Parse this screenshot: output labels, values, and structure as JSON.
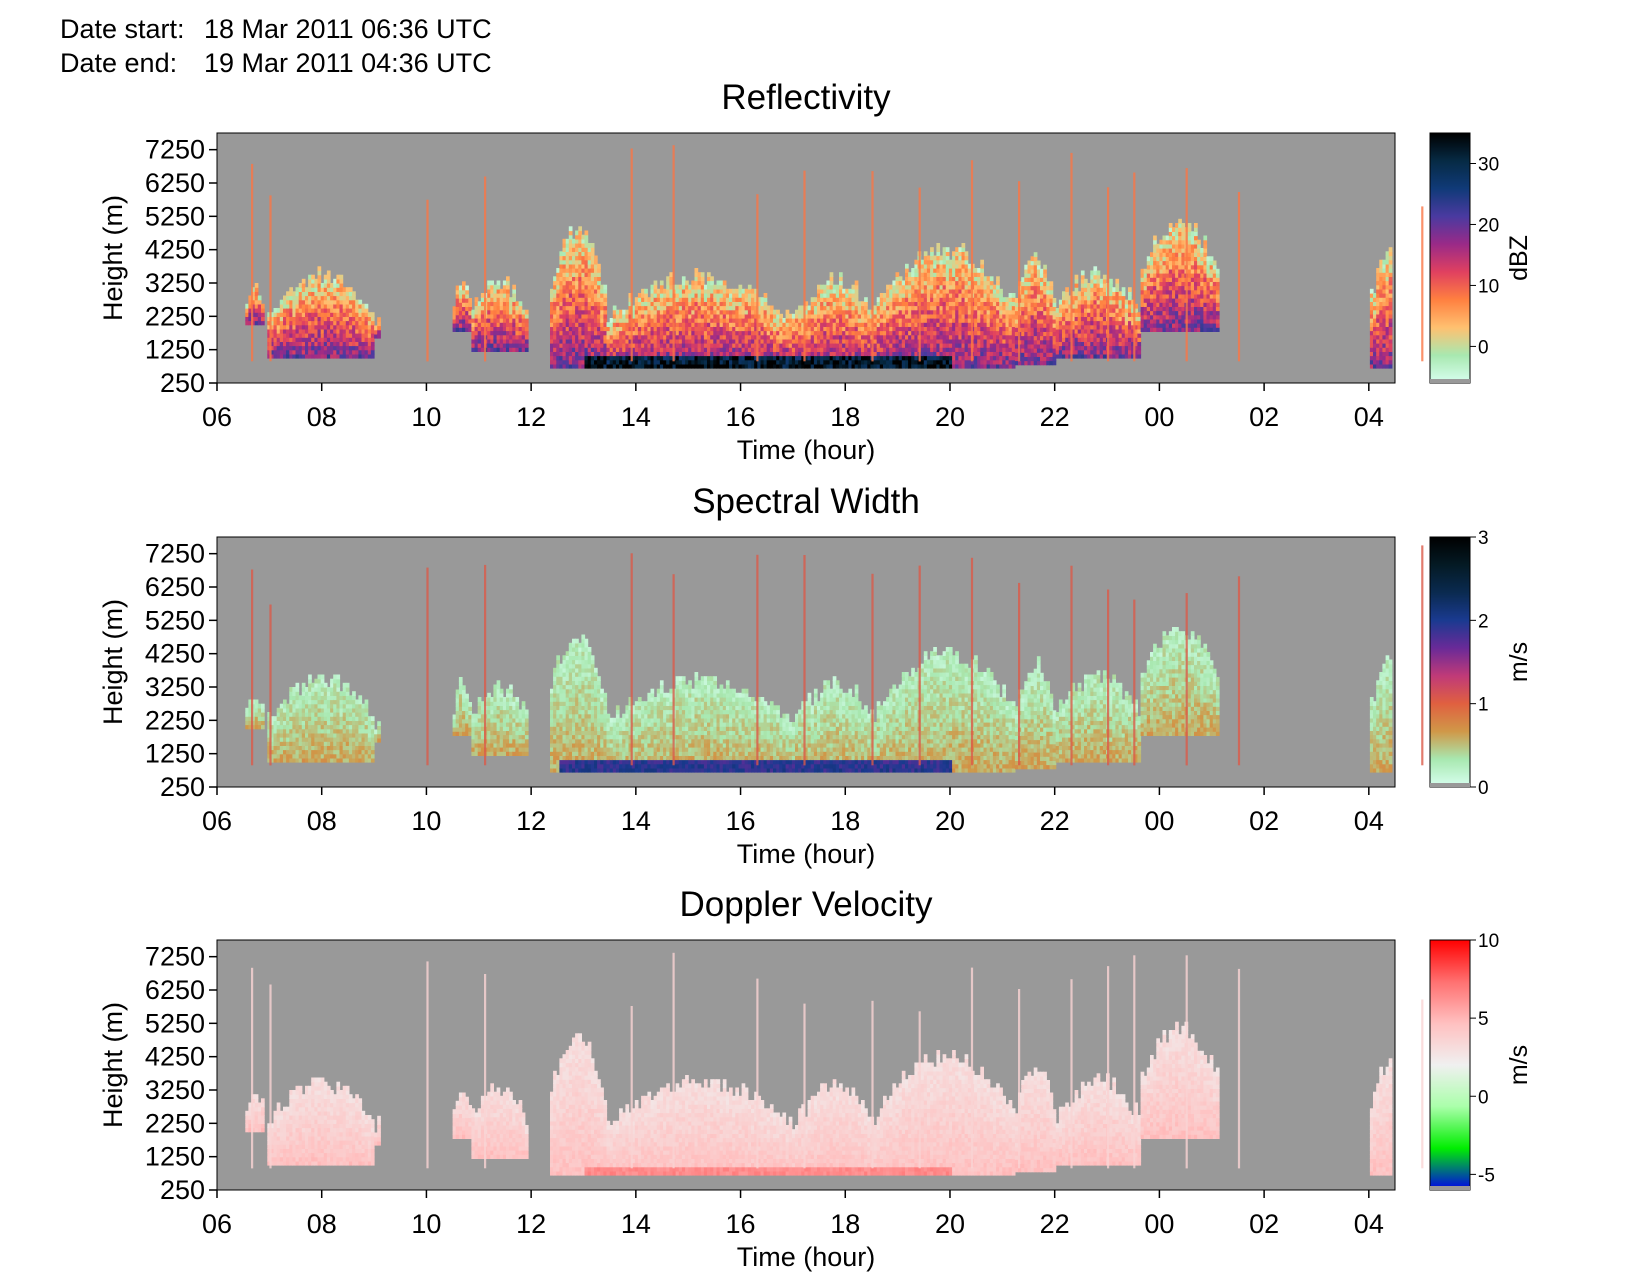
{
  "header": {
    "start_label": "Date start:",
    "start_value": "18 Mar 2011 06:36 UTC",
    "end_label": "Date end:",
    "end_value": "19 Mar 2011 04:36 UTC"
  },
  "colors": {
    "background": "#999999",
    "no_data": "#999999",
    "axis": "#000000"
  },
  "chart_data": [
    {
      "type": "heatmap",
      "title": "Reflectivity",
      "xlabel": "Time (hour)",
      "ylabel": "Height (m)",
      "xticks": [
        "06",
        "08",
        "10",
        "12",
        "14",
        "16",
        "18",
        "20",
        "22",
        "00",
        "02",
        "04"
      ],
      "yticks": [
        "250",
        "1250",
        "2250",
        "3250",
        "4250",
        "5250",
        "6250",
        "7250"
      ],
      "xlim_hours_since_06": [
        0,
        22.5
      ],
      "ylim": [
        250,
        7750
      ],
      "colorbar": {
        "label": "dBZ",
        "ticks": [
          "0",
          "10",
          "20",
          "30"
        ],
        "range": [
          -6,
          35
        ],
        "colors": [
          "#d8fff0",
          "#a8e8b0",
          "#ffc070",
          "#ff8040",
          "#e04060",
          "#9a2a88",
          "#4a3aa0",
          "#103a78",
          "#062a44",
          "#000000"
        ]
      }
    },
    {
      "type": "heatmap",
      "title": "Spectral Width",
      "xlabel": "Time (hour)",
      "ylabel": "Height (m)",
      "xticks": [
        "06",
        "08",
        "10",
        "12",
        "14",
        "16",
        "18",
        "20",
        "22",
        "00",
        "02",
        "04"
      ],
      "yticks": [
        "250",
        "1250",
        "2250",
        "3250",
        "4250",
        "5250",
        "6250",
        "7250"
      ],
      "xlim_hours_since_06": [
        0,
        22.5
      ],
      "ylim": [
        250,
        7750
      ],
      "colorbar": {
        "label": "m/s",
        "ticks": [
          "0",
          "1",
          "2",
          "3"
        ],
        "range": [
          0,
          3
        ],
        "colors": [
          "#d8fff0",
          "#a8e8b0",
          "#d09848",
          "#e06040",
          "#c03a78",
          "#6a2a98",
          "#1a3a90",
          "#0a2a50",
          "#041a24",
          "#000000"
        ]
      }
    },
    {
      "type": "heatmap",
      "title": "Doppler Velocity",
      "xlabel": "Time (hour)",
      "ylabel": "Height (m)",
      "xticks": [
        "06",
        "08",
        "10",
        "12",
        "14",
        "16",
        "18",
        "20",
        "22",
        "00",
        "02",
        "04"
      ],
      "yticks": [
        "250",
        "1250",
        "2250",
        "3250",
        "4250",
        "5250",
        "6250",
        "7250"
      ],
      "xlim_hours_since_06": [
        0,
        22.5
      ],
      "ylim": [
        250,
        7750
      ],
      "colorbar": {
        "label": "m/s",
        "ticks": [
          "-5",
          "0",
          "5",
          "10"
        ],
        "range": [
          -6,
          10
        ],
        "colors": [
          "#0000ee",
          "#00ee00",
          "#aaffaa",
          "#f0f0f0",
          "#ffc0c0",
          "#ff7070",
          "#ff0000"
        ]
      }
    }
  ]
}
